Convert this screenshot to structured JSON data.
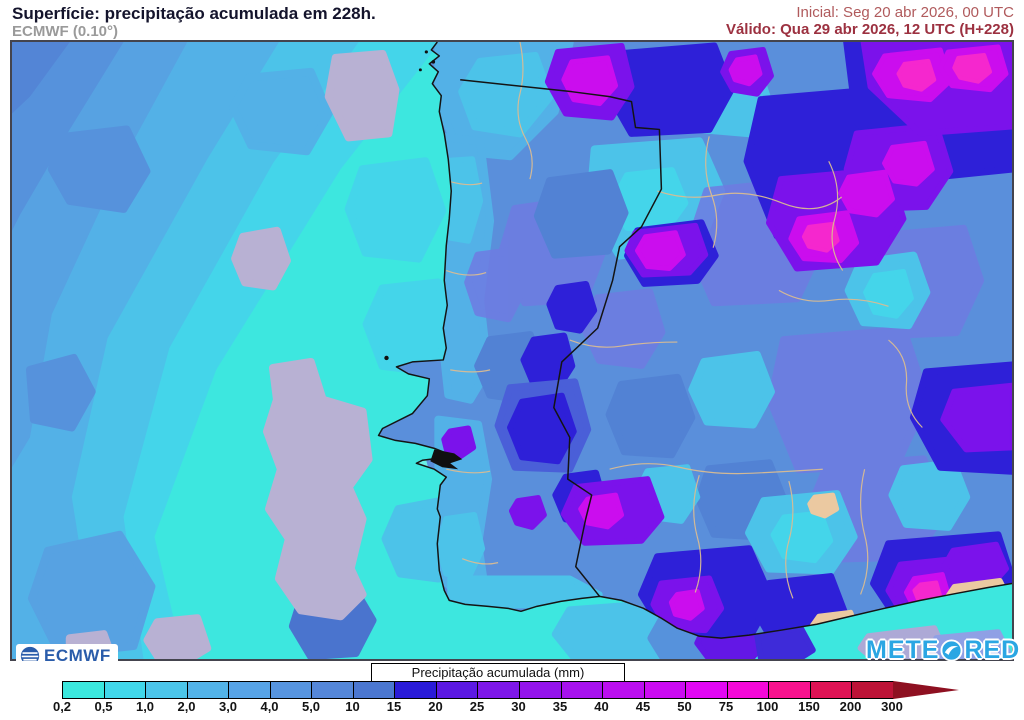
{
  "header": {
    "title": "Superfície: precipitação acumulada em 228h.",
    "subtitle": "ECMWF (0.10°)",
    "init_label": "Inicial: Seg 20 abr 2026, 00 UTC",
    "valid_label": "Válido: Qua 29 abr 2026, 12 UTC (H+228)"
  },
  "map": {
    "ecmwf_logo_text": "ECMWF",
    "meteored_logo_part1": "METE",
    "meteored_logo_part2": "RED"
  },
  "legend": {
    "title": "Precipitação acumulada (mm)",
    "ticks": [
      "0,2",
      "0,5",
      "1,0",
      "2,0",
      "3,0",
      "4,0",
      "5,0",
      "10",
      "15",
      "20",
      "25",
      "30",
      "35",
      "40",
      "45",
      "50",
      "75",
      "100",
      "150",
      "200",
      "300"
    ],
    "colors": [
      "#3BE8DE",
      "#41D7EA",
      "#4CC5EA",
      "#53B3E9",
      "#57A3E6",
      "#5795E0",
      "#5587D9",
      "#4B77D1",
      "#2A1BD8",
      "#5C19E3",
      "#7E17E9",
      "#9414EC",
      "#A712EE",
      "#BB0EF0",
      "#CB0BF2",
      "#E207F4",
      "#F509D8",
      "#F8128E",
      "#DF1355",
      "#BD1337"
    ],
    "arrow_color": "#8E1021"
  },
  "colors": {
    "title_text": "#14142c",
    "subtitle_text": "#9a9a9a",
    "init_text": "#b05a5c",
    "valid_text": "#9c3140",
    "ecmwf_blue": "#2A5CAA",
    "meteored_blue": "#2BA6E3",
    "below_scale_gray": "#B8B1D3",
    "dry_land_tan": "#EBC9A1",
    "coastline_black": "#141414",
    "province_border_tan": "#D9BC93"
  }
}
